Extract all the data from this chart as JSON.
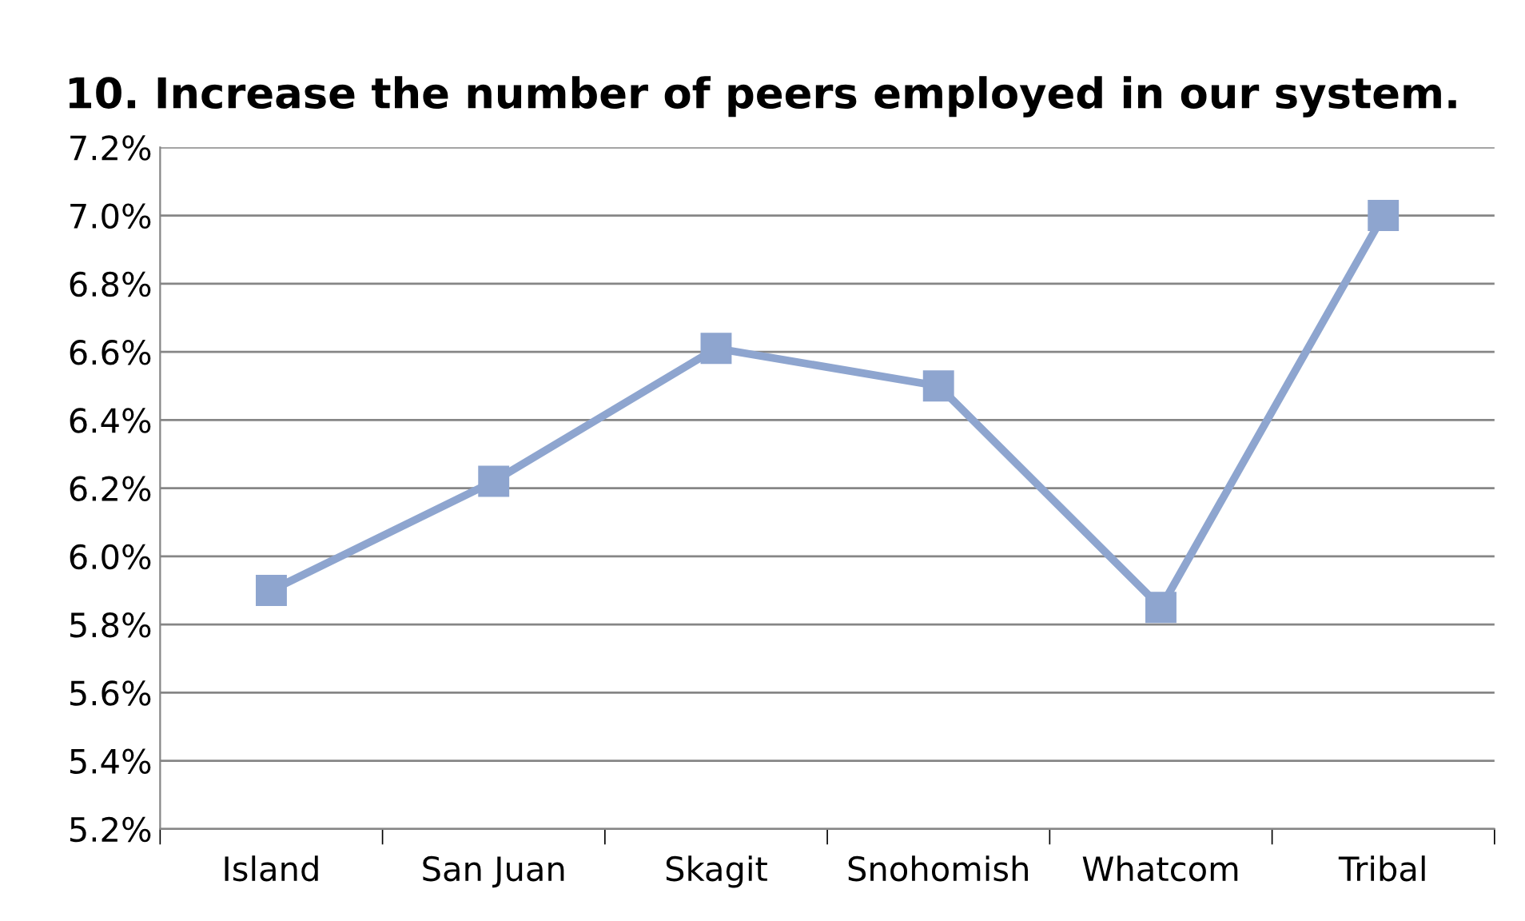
{
  "chart_data": {
    "type": "line",
    "title": "10. Increase the number of peers employed in our system.",
    "categories": [
      "Island",
      "San Juan",
      "Skagit",
      "Snohomish",
      "Whatcom",
      "Tribal"
    ],
    "series": [
      {
        "color": "#8ea5cf",
        "values": [
          5.9,
          6.22,
          6.61,
          6.5,
          5.85,
          7.0
        ]
      }
    ],
    "ylim": [
      5.2,
      7.2
    ],
    "yticks": [
      {
        "value": 5.2,
        "label": "5.2%"
      },
      {
        "value": 5.4,
        "label": "5.4%"
      },
      {
        "value": 5.6,
        "label": "5.6%"
      },
      {
        "value": 5.8,
        "label": "5.8%"
      },
      {
        "value": 6.0,
        "label": "6.0%"
      },
      {
        "value": 6.2,
        "label": "6.2%"
      },
      {
        "value": 6.4,
        "label": "6.4%"
      },
      {
        "value": 6.6,
        "label": "6.6%"
      },
      {
        "value": 6.8,
        "label": "6.8%"
      },
      {
        "value": 7.0,
        "label": "7.0%"
      },
      {
        "value": 7.2,
        "label": "7.2%"
      }
    ],
    "grid": "y",
    "marker": "square",
    "line_style": "solid"
  }
}
